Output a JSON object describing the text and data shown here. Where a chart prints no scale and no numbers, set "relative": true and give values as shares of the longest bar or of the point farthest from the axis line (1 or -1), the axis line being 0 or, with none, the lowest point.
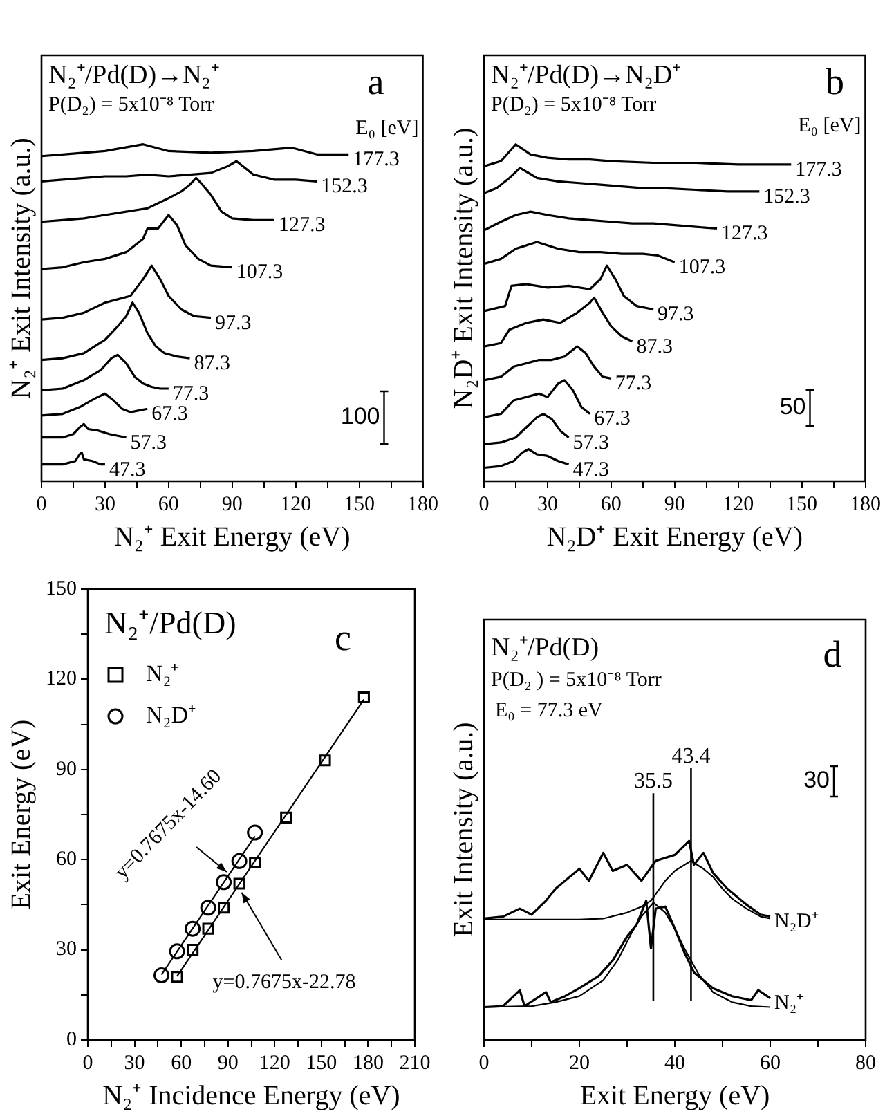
{
  "chart_data": [
    {
      "type": "line",
      "relative": true,
      "title": "N₂⁺/Pd(D)→N₂⁺",
      "subtitle": "P(D₂) = 5x10⁻⁸ Torr",
      "legend_title": "E₀ [eV]",
      "xlabel": "N₂⁺ Exit Energy (eV)",
      "ylabel": "N₂⁺ Exit Intensity (a.u.)",
      "annotations": [
        "a",
        "100"
      ],
      "xlim": [
        0,
        180
      ],
      "xticks": [
        0,
        {
          "value": 15,
          "label": null
        },
        30,
        {
          "value": 45,
          "label": null
        },
        60,
        {
          "value": 75,
          "label": null
        },
        90,
        {
          "value": 105,
          "label": null
        },
        120,
        {
          "value": 135,
          "label": null
        },
        150,
        {
          "value": 165,
          "label": null
        },
        180
      ],
      "series": [
        {
          "name": "47.3",
          "color": "#000000",
          "x": [
            0,
            10,
            16,
            18,
            19,
            20,
            24,
            28,
            30
          ],
          "values": [
            0.05,
            0.05,
            0.06,
            0.08,
            0.085,
            0.065,
            0.06,
            0.05,
            0.05
          ]
        },
        {
          "name": "57.3",
          "color": "#000000",
          "x": [
            0,
            10,
            15,
            18,
            20,
            22,
            27,
            32,
            36,
            40
          ],
          "values": [
            0.13,
            0.13,
            0.14,
            0.16,
            0.17,
            0.155,
            0.15,
            0.14,
            0.135,
            0.13
          ]
        },
        {
          "name": "67.3",
          "color": "#000000",
          "x": [
            0,
            10,
            18,
            25,
            30,
            34,
            38,
            42,
            46,
            50
          ],
          "values": [
            0.195,
            0.2,
            0.22,
            0.245,
            0.26,
            0.24,
            0.215,
            0.205,
            0.21,
            0.215
          ]
        },
        {
          "name": "77.3",
          "color": "#000000",
          "x": [
            0,
            10,
            20,
            28,
            33,
            36,
            40,
            44,
            48,
            52,
            56,
            60
          ],
          "values": [
            0.27,
            0.275,
            0.3,
            0.33,
            0.365,
            0.375,
            0.35,
            0.31,
            0.29,
            0.28,
            0.275,
            0.275
          ]
        },
        {
          "name": "87.3",
          "color": "#000000",
          "x": [
            0,
            10,
            20,
            30,
            36,
            40,
            43,
            46,
            50,
            54,
            58,
            64,
            70
          ],
          "values": [
            0.36,
            0.365,
            0.38,
            0.42,
            0.46,
            0.49,
            0.53,
            0.5,
            0.44,
            0.4,
            0.38,
            0.37,
            0.365
          ]
        },
        {
          "name": "97.3",
          "color": "#000000",
          "x": [
            0,
            10,
            20,
            30,
            36,
            42,
            48,
            52,
            56,
            60,
            66,
            72,
            80
          ],
          "values": [
            0.48,
            0.485,
            0.5,
            0.53,
            0.54,
            0.55,
            0.6,
            0.64,
            0.6,
            0.55,
            0.51,
            0.49,
            0.485
          ]
        },
        {
          "name": "107.3",
          "color": "#000000",
          "x": [
            0,
            10,
            20,
            30,
            40,
            48,
            50,
            55,
            60,
            64,
            68,
            74,
            80,
            90
          ],
          "values": [
            0.63,
            0.635,
            0.65,
            0.66,
            0.68,
            0.72,
            0.75,
            0.75,
            0.79,
            0.76,
            0.7,
            0.66,
            0.64,
            0.635
          ]
        },
        {
          "name": "127.3",
          "color": "#000000",
          "x": [
            0,
            10,
            20,
            30,
            40,
            50,
            60,
            66,
            70,
            73,
            76,
            80,
            85,
            90,
            100,
            110
          ],
          "values": [
            0.77,
            0.775,
            0.78,
            0.79,
            0.8,
            0.81,
            0.84,
            0.86,
            0.88,
            0.9,
            0.88,
            0.85,
            0.8,
            0.78,
            0.775,
            0.775
          ]
        },
        {
          "name": "152.3",
          "color": "#000000",
          "x": [
            0,
            10,
            20,
            30,
            40,
            50,
            60,
            70,
            80,
            88,
            92,
            96,
            100,
            110,
            120,
            130
          ],
          "values": [
            0.89,
            0.895,
            0.9,
            0.905,
            0.905,
            0.91,
            0.905,
            0.91,
            0.915,
            0.935,
            0.95,
            0.93,
            0.91,
            0.895,
            0.895,
            0.89
          ]
        },
        {
          "name": "177.3",
          "color": "#000000",
          "x": [
            0,
            10,
            20,
            30,
            48,
            60,
            80,
            100,
            118,
            130,
            145
          ],
          "values": [
            0.965,
            0.97,
            0.975,
            0.98,
            1,
            0.98,
            0.975,
            0.98,
            0.99,
            0.97,
            0.97
          ]
        }
      ]
    },
    {
      "type": "line",
      "relative": true,
      "title": "N₂⁺/Pd(D)→N₂D⁺",
      "subtitle": "P(D₂) = 5x10⁻⁸ Torr",
      "legend_title": "E₀ [eV]",
      "xlabel": "N₂D⁺ Exit Energy (eV)",
      "ylabel": "N₂D⁺ Exit Intensity (a.u.)",
      "annotations": [
        "b",
        "50"
      ],
      "xlim": [
        0,
        180
      ],
      "xticks": [
        0,
        {
          "value": 15,
          "label": null
        },
        30,
        {
          "value": 45,
          "label": null
        },
        60,
        {
          "value": 75,
          "label": null
        },
        90,
        {
          "value": 105,
          "label": null
        },
        120,
        {
          "value": 135,
          "label": null
        },
        150,
        {
          "value": 165,
          "label": null
        },
        180
      ],
      "series": [
        {
          "name": "47.3",
          "color": "#000000",
          "x": [
            0,
            8,
            14,
            18,
            21,
            25,
            30,
            35,
            40
          ],
          "values": [
            0.04,
            0.045,
            0.06,
            0.085,
            0.095,
            0.08,
            0.075,
            0.06,
            0.05
          ]
        },
        {
          "name": "57.3",
          "color": "#000000",
          "x": [
            0,
            8,
            15,
            20,
            25,
            28,
            32,
            36,
            40
          ],
          "values": [
            0.11,
            0.115,
            0.13,
            0.16,
            0.19,
            0.2,
            0.185,
            0.15,
            0.13
          ]
        },
        {
          "name": "67.3",
          "color": "#000000",
          "x": [
            0,
            8,
            14,
            20,
            26,
            30,
            35,
            38,
            42,
            46,
            50
          ],
          "values": [
            0.19,
            0.2,
            0.24,
            0.25,
            0.26,
            0.25,
            0.29,
            0.3,
            0.27,
            0.22,
            0.2
          ]
        },
        {
          "name": "77.3",
          "color": "#000000",
          "x": [
            0,
            8,
            14,
            20,
            26,
            32,
            38,
            44,
            48,
            52,
            56,
            60
          ],
          "values": [
            0.3,
            0.31,
            0.34,
            0.35,
            0.36,
            0.36,
            0.37,
            0.4,
            0.38,
            0.34,
            0.31,
            0.305
          ]
        },
        {
          "name": "87.3",
          "color": "#000000",
          "x": [
            0,
            8,
            12,
            20,
            28,
            36,
            44,
            50,
            52,
            56,
            60,
            65,
            70
          ],
          "values": [
            0.4,
            0.41,
            0.45,
            0.47,
            0.48,
            0.47,
            0.5,
            0.53,
            0.545,
            0.5,
            0.46,
            0.43,
            0.415
          ]
        },
        {
          "name": "97.3",
          "color": "#000000",
          "x": [
            0,
            10,
            13,
            20,
            30,
            40,
            50,
            55,
            58,
            62,
            66,
            72,
            80
          ],
          "values": [
            0.505,
            0.52,
            0.58,
            0.585,
            0.575,
            0.58,
            0.57,
            0.6,
            0.64,
            0.6,
            0.55,
            0.52,
            0.51
          ]
        },
        {
          "name": "107.3",
          "color": "#000000",
          "x": [
            0,
            8,
            15,
            25,
            35,
            45,
            55,
            65,
            75,
            82,
            90
          ],
          "values": [
            0.645,
            0.66,
            0.69,
            0.71,
            0.69,
            0.68,
            0.68,
            0.675,
            0.675,
            0.67,
            0.65
          ]
        },
        {
          "name": "127.3",
          "color": "#000000",
          "x": [
            0,
            8,
            15,
            22,
            30,
            40,
            50,
            60,
            70,
            80,
            90,
            100,
            110
          ],
          "values": [
            0.745,
            0.77,
            0.79,
            0.8,
            0.79,
            0.78,
            0.775,
            0.77,
            0.765,
            0.765,
            0.76,
            0.755,
            0.75
          ]
        },
        {
          "name": "152.3",
          "color": "#000000",
          "x": [
            0,
            6,
            12,
            17,
            25,
            35,
            45,
            55,
            65,
            75,
            85,
            100,
            115,
            130
          ],
          "values": [
            0.855,
            0.87,
            0.9,
            0.93,
            0.9,
            0.89,
            0.885,
            0.88,
            0.875,
            0.87,
            0.87,
            0.865,
            0.86,
            0.86
          ]
        },
        {
          "name": "177.3",
          "color": "#000000",
          "x": [
            0,
            8,
            15,
            22,
            30,
            40,
            50,
            60,
            80,
            100,
            120,
            145
          ],
          "values": [
            0.935,
            0.95,
            1,
            0.97,
            0.96,
            0.955,
            0.955,
            0.95,
            0.945,
            0.945,
            0.94,
            0.94
          ]
        }
      ]
    },
    {
      "type": "scatter",
      "title": "N₂⁺/Pd(D)",
      "xlabel": "N₂⁺ Incidence Energy (eV)",
      "ylabel": "Exit Energy (eV)",
      "legend": "top left",
      "annotations": [
        "c",
        {
          "text": "y=0.7675x-14.60",
          "x": 91,
          "y": 55
        },
        {
          "text": "y=0.7675x-22.78",
          "x": 97,
          "y": 50
        }
      ],
      "xlim": [
        0,
        210
      ],
      "xticks": [
        0,
        {
          "value": 15,
          "label": null
        },
        30,
        {
          "value": 45,
          "label": null
        },
        60,
        {
          "value": 75,
          "label": null
        },
        90,
        {
          "value": 105,
          "label": null
        },
        120,
        {
          "value": 135,
          "label": null
        },
        150,
        {
          "value": 165,
          "label": null
        },
        180,
        {
          "value": 195,
          "label": null
        },
        210
      ],
      "ylim": [
        0,
        150
      ],
      "yticks": [
        0,
        {
          "value": 15,
          "label": null
        },
        30,
        {
          "value": 45,
          "label": null
        },
        60,
        {
          "value": 75,
          "label": null
        },
        90,
        {
          "value": 105,
          "label": null
        },
        120,
        {
          "value": 135,
          "label": null
        },
        150
      ],
      "series": [
        {
          "name": "N₂⁺",
          "color": "#000000",
          "marker": "square",
          "x": [
            57.3,
            67.3,
            77.3,
            87.3,
            97.3,
            107.3,
            127.3,
            152.3,
            177.3
          ],
          "values": [
            21,
            30,
            37,
            44,
            52,
            59,
            74,
            93,
            114
          ]
        },
        {
          "name": "N₂D⁺",
          "color": "#000000",
          "marker": "circle",
          "x": [
            47.3,
            57.3,
            67.3,
            77.3,
            87.3,
            97.3,
            107.3
          ],
          "values": [
            21.5,
            29.5,
            37,
            44,
            52.5,
            59.5,
            69
          ]
        },
        {
          "type": "line",
          "color": "#000000",
          "x": [
            57.3,
            177.3
          ],
          "values": [
            21.2,
            113.3
          ]
        },
        {
          "type": "line",
          "color": "#000000",
          "x": [
            47.3,
            107.3
          ],
          "values": [
            21.7,
            67.8
          ]
        }
      ]
    },
    {
      "type": "line",
      "relative": true,
      "title": "N₂⁺/Pd(D)",
      "subtitle": "P(D₂ ) = 5x10⁻⁸ Torr",
      "xlabel": "Exit Energy (eV)",
      "ylabel": "Exit Intensity (a.u.)",
      "annotations": [
        "E₀ = 77.3 eV",
        "d",
        "30"
      ],
      "xlim": [
        0,
        80
      ],
      "xticks": [
        0,
        {
          "value": 10,
          "label": null
        },
        20,
        {
          "value": 30,
          "label": null
        },
        40,
        {
          "value": 50,
          "label": null
        },
        60,
        {
          "value": 70,
          "label": null
        },
        80
      ],
      "ref_lines": [
        {
          "axis": "x",
          "value": 35.5,
          "label": "35.5",
          "color": "#000000"
        },
        {
          "axis": "x",
          "value": 43.4,
          "label": "43.4",
          "color": "#000000"
        }
      ],
      "series": [
        {
          "name": "N₂⁺",
          "color": "#000000",
          "x": [
            0,
            4,
            7.5,
            8.5,
            13,
            14,
            17,
            20,
            24,
            27,
            30,
            32,
            34,
            35,
            36,
            38,
            40,
            42,
            44,
            46,
            48,
            52,
            56,
            57.5,
            60
          ],
          "values": [
            0.165,
            0.17,
            0.25,
            0.17,
            0.24,
            0.19,
            0.22,
            0.26,
            0.32,
            0.4,
            0.52,
            0.58,
            0.7,
            0.46,
            0.66,
            0.67,
            0.56,
            0.44,
            0.34,
            0.3,
            0.26,
            0.22,
            0.2,
            0.25,
            0.21
          ]
        },
        {
          "color": "#000000",
          "x": [
            0,
            10,
            15,
            20,
            25,
            28,
            31,
            33,
            35.5,
            38,
            40,
            42,
            45,
            48,
            52,
            56,
            60
          ],
          "values": [
            0.165,
            0.17,
            0.19,
            0.22,
            0.3,
            0.4,
            0.54,
            0.62,
            0.69,
            0.64,
            0.56,
            0.46,
            0.33,
            0.24,
            0.19,
            0.17,
            0.165
          ]
        },
        {
          "name": "N₂D⁺",
          "color": "#000000",
          "x": [
            0,
            4,
            7.5,
            10,
            13,
            15,
            18,
            20,
            22,
            25,
            27,
            30,
            33,
            36,
            40,
            43,
            44,
            46,
            48,
            51,
            55,
            58,
            60
          ],
          "values": [
            0.61,
            0.62,
            0.66,
            0.63,
            0.7,
            0.76,
            0.82,
            0.86,
            0.8,
            0.94,
            0.85,
            0.88,
            0.8,
            0.9,
            0.93,
            1,
            0.88,
            0.94,
            0.84,
            0.76,
            0.68,
            0.63,
            0.62
          ]
        },
        {
          "color": "#000000",
          "x": [
            0,
            20,
            25,
            30,
            33,
            35,
            38,
            40,
            43.4,
            46,
            48,
            50,
            52,
            55,
            58,
            60
          ],
          "values": [
            0.605,
            0.605,
            0.61,
            0.64,
            0.67,
            0.7,
            0.8,
            0.85,
            0.9,
            0.86,
            0.82,
            0.76,
            0.71,
            0.66,
            0.62,
            0.61
          ]
        }
      ]
    }
  ]
}
